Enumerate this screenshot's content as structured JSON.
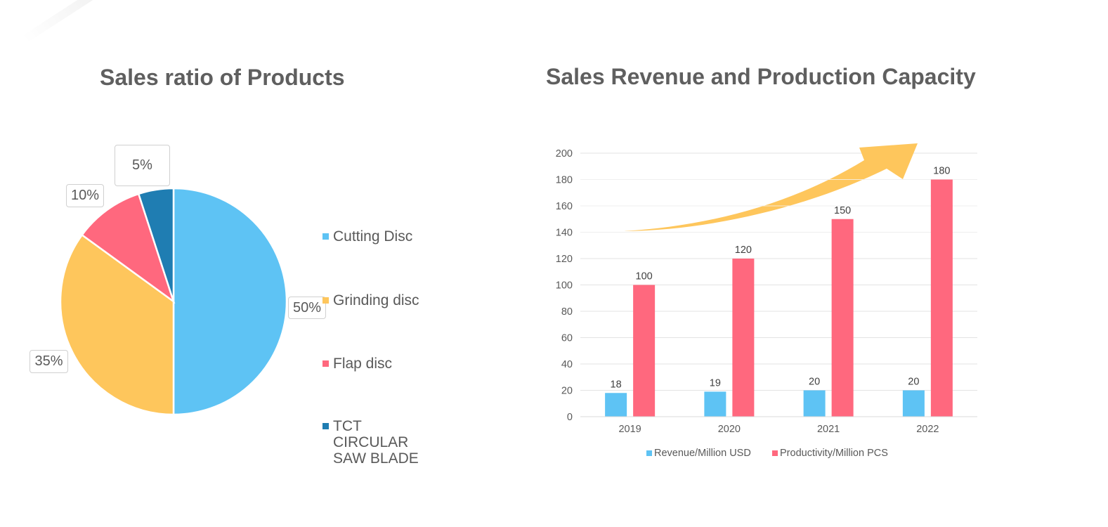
{
  "pie_title": "Sales ratio of Products",
  "bar_title": "Sales Revenue and Production Capacity",
  "colors": {
    "blue": "#5ec3f4",
    "yellow": "#fec65c",
    "pink": "#ff687e",
    "dark_blue": "#1f7db2",
    "arrow": "#fec65c",
    "gridline": "#e3e3e3",
    "text": "#595959"
  },
  "chart_data": [
    {
      "type": "pie",
      "title": "Sales ratio of Products",
      "categories": [
        "Cutting Disc",
        "Grinding disc",
        "Flap disc",
        "TCT CIRCULAR SAW BLADE"
      ],
      "values": [
        50,
        35,
        10,
        5
      ],
      "data_labels": [
        "50%",
        "35%",
        "10%",
        "5%"
      ],
      "legend_position": "right"
    },
    {
      "type": "bar",
      "title": "Sales Revenue and Production Capacity",
      "categories": [
        "2019",
        "2020",
        "2021",
        "2022"
      ],
      "series": [
        {
          "name": "Revenue/Million USD",
          "values": [
            18,
            19,
            20,
            20
          ]
        },
        {
          "name": "Productivity/Million PCS",
          "values": [
            100,
            120,
            150,
            180
          ]
        }
      ],
      "xlabel": "",
      "ylabel": "",
      "ylim": [
        0,
        200
      ],
      "yticks": [
        0,
        20,
        40,
        60,
        80,
        100,
        120,
        140,
        160,
        180,
        200
      ],
      "grid": true,
      "legend_position": "bottom",
      "annotations": [
        "upward trend arrow"
      ]
    }
  ]
}
